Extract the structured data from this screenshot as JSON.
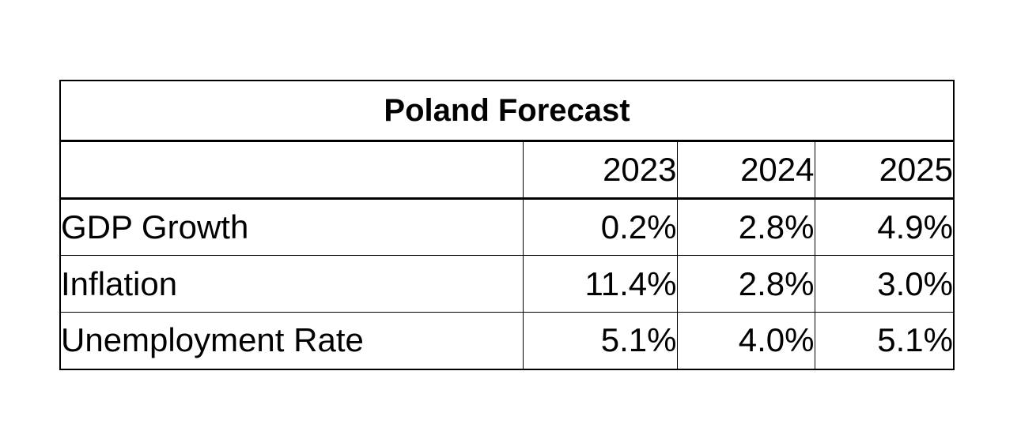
{
  "chart_data": {
    "type": "table",
    "title": "Poland Forecast",
    "columns": [
      "",
      "2023",
      "2024",
      "2025"
    ],
    "rows": [
      {
        "label": "GDP Growth",
        "values": [
          "0.2%",
          "2.8%",
          "4.9%"
        ]
      },
      {
        "label": "Inflation",
        "values": [
          "11.4%",
          "2.8%",
          "3.0%"
        ]
      },
      {
        "label": "Unemployment Rate",
        "values": [
          "5.1%",
          "4.0%",
          "5.1%"
        ]
      }
    ]
  }
}
